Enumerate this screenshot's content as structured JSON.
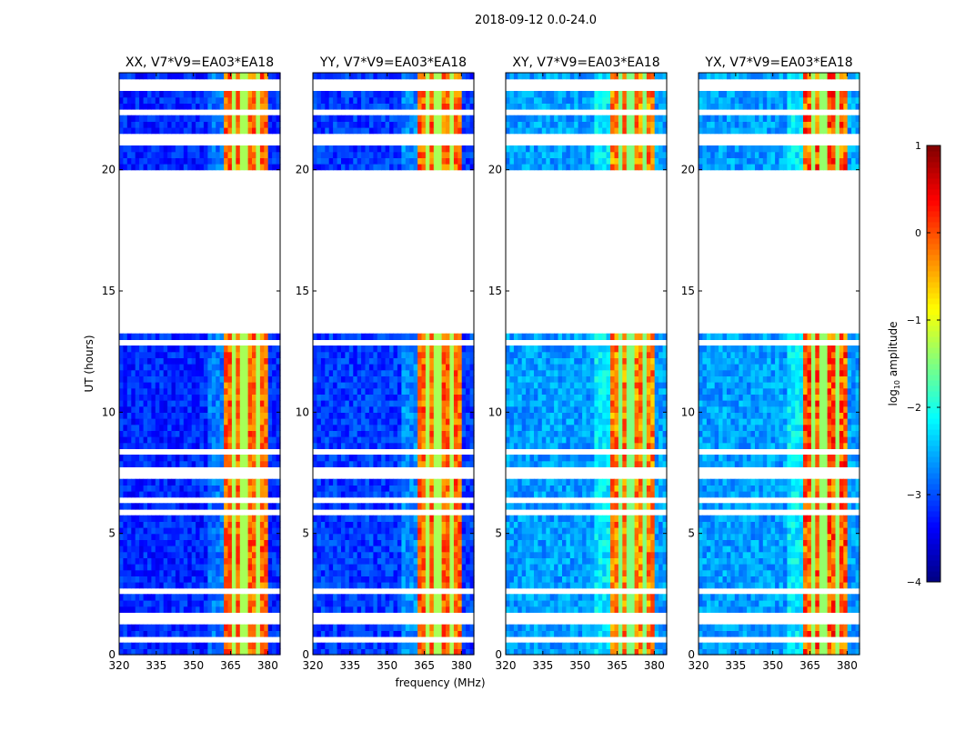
{
  "chart_data": {
    "type": "heatmap",
    "suptitle": "2018-09-12 0.0-24.0",
    "xlabel": "frequency (MHz)",
    "ylabel": "UT (hours)",
    "xlim": [
      320,
      385
    ],
    "ylim": [
      0,
      24
    ],
    "xticks": [
      "320",
      "335",
      "350",
      "365",
      "380"
    ],
    "xtick_values": [
      320,
      335,
      350,
      365,
      380
    ],
    "yticks": [
      "0",
      "5",
      "10",
      "15",
      "20"
    ],
    "ytick_values": [
      0,
      5,
      10,
      15,
      20
    ],
    "data_freq_range_mhz": [
      320,
      384
    ],
    "rfi_band_mhz": [
      363,
      380
    ],
    "rfi_stripe_mhz": [
      366,
      370.5,
      375.5
    ],
    "flagged_hours": [
      [
        0.55,
        0.75
      ],
      [
        1.4,
        1.6
      ],
      [
        2.55,
        2.6
      ],
      [
        3.45,
        3.55
      ],
      [
        4.5,
        4.55
      ],
      [
        5.85,
        5.95
      ],
      [
        6.2,
        6.4
      ],
      [
        7.3,
        7.6
      ],
      [
        8.3,
        8.35
      ],
      [
        12.9,
        13.0
      ],
      [
        13.2,
        15.1
      ],
      [
        15.35,
        19.93
      ],
      [
        21.0,
        21.4
      ],
      [
        22.2,
        22.4
      ],
      [
        23.4,
        23.6
      ]
    ],
    "panels": [
      {
        "title": "XX, V7*V9=EA03*EA18",
        "background_log_amp": -3.2,
        "rfi_log_amp": -0.5,
        "rfi_peak_log_amp": 0.3
      },
      {
        "title": "YY, V7*V9=EA03*EA18",
        "background_log_amp": -3.1,
        "rfi_log_amp": -0.5,
        "rfi_peak_log_amp": 0.3
      },
      {
        "title": "XY, V7*V9=EA03*EA18",
        "background_log_amp": -2.6,
        "rfi_log_amp": -0.7,
        "rfi_peak_log_amp": 0.2
      },
      {
        "title": "YX, V7*V9=EA03*EA18",
        "background_log_amp": -2.6,
        "rfi_log_amp": -0.6,
        "rfi_peak_log_amp": 0.5
      }
    ],
    "colorbar": {
      "label_prefix": "log",
      "label_sub": "10",
      "label_suffix": " amplitude",
      "range": [
        -4,
        1
      ],
      "ticks": [
        "−4",
        "−3",
        "−2",
        "−1",
        "0",
        "1"
      ],
      "tick_values": [
        -4,
        -3,
        -2,
        -1,
        0,
        1
      ],
      "colormap": "jet"
    }
  }
}
